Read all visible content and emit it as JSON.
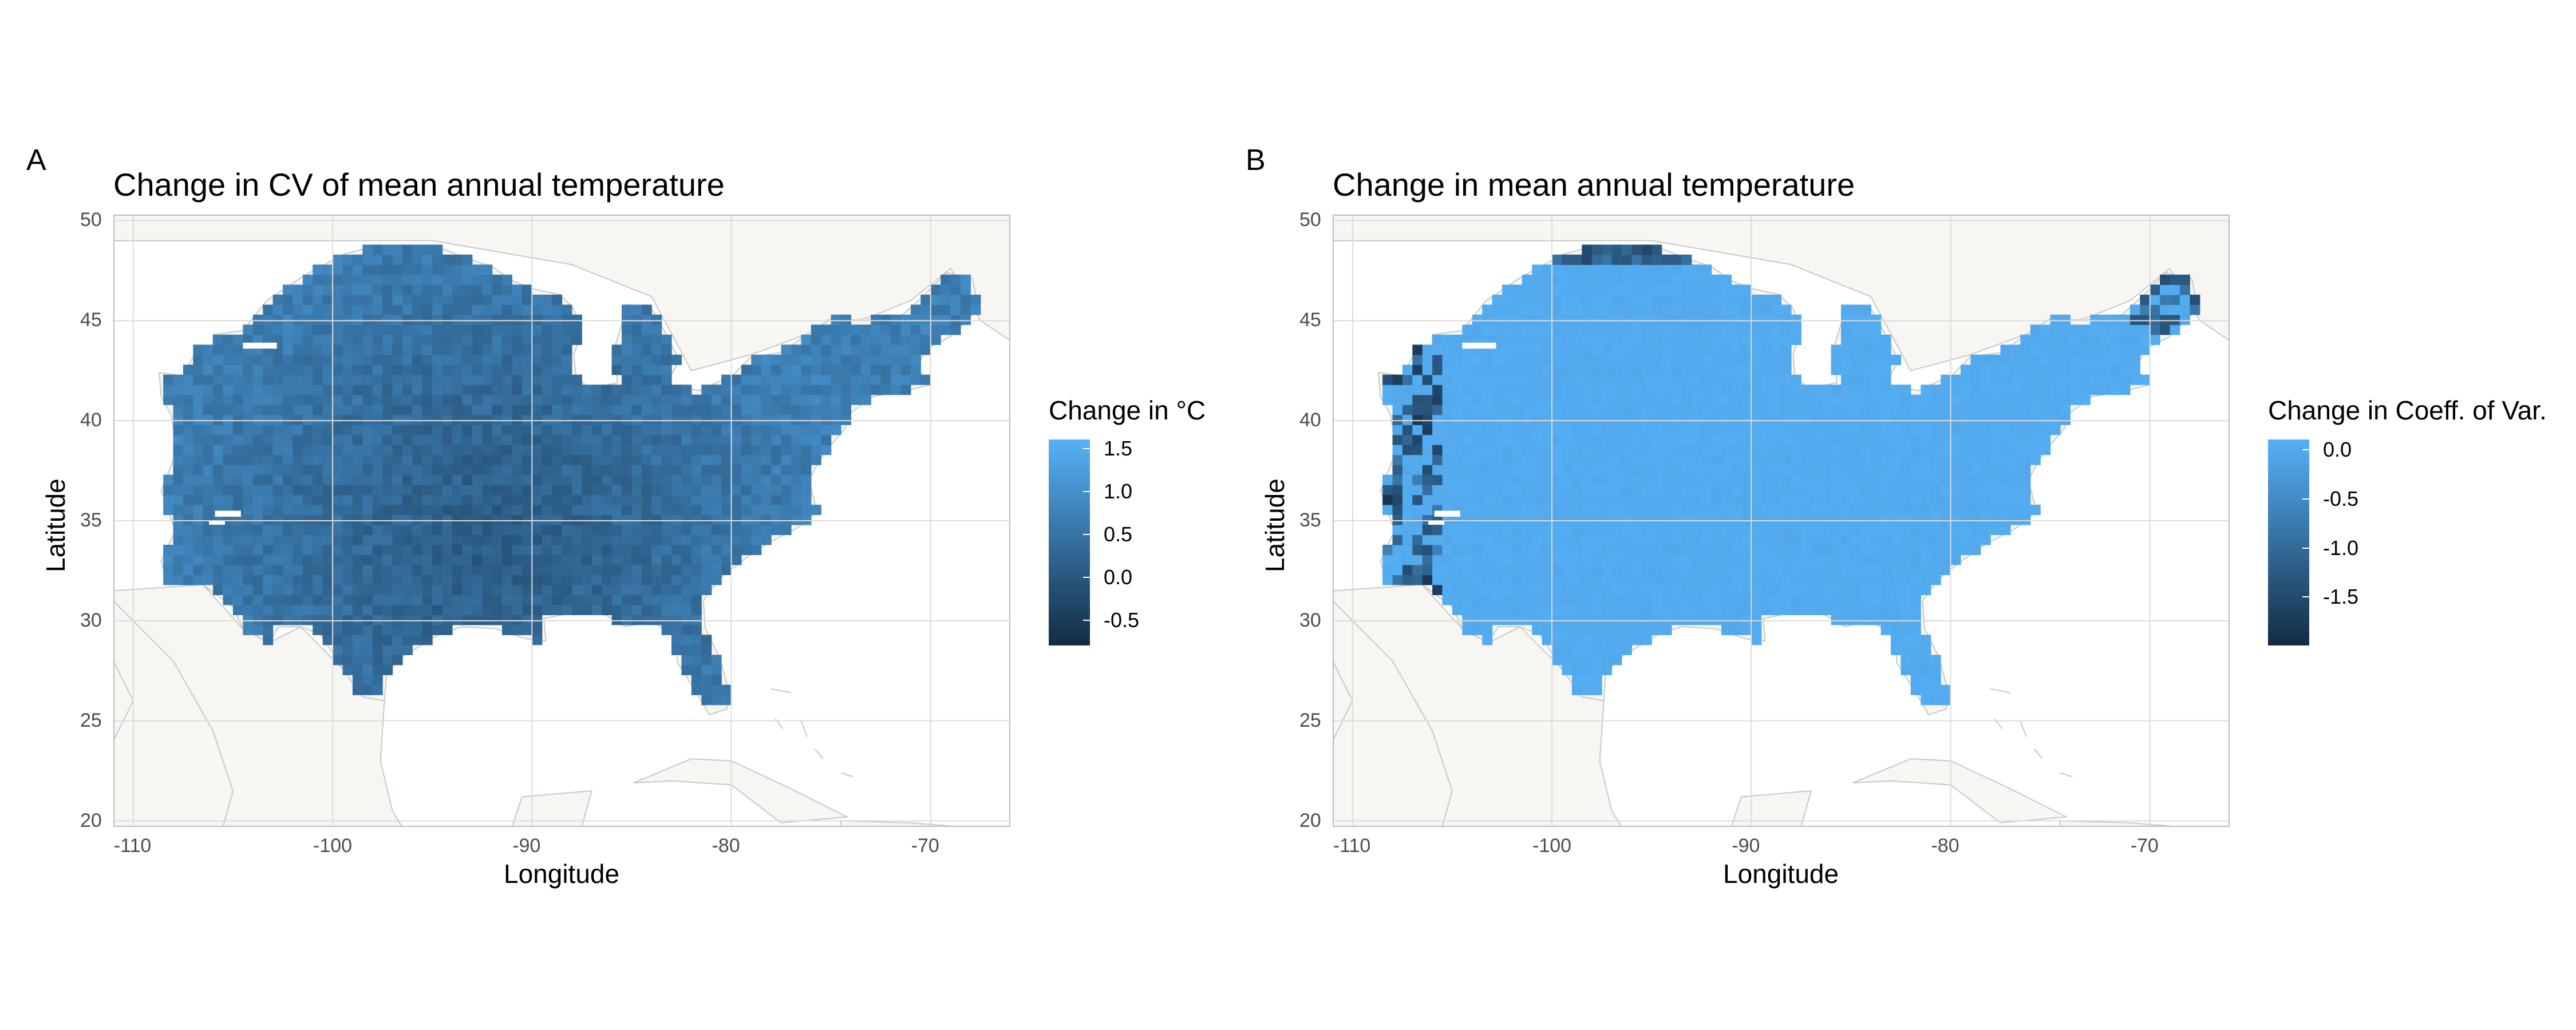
{
  "panels": [
    {
      "letter": "A",
      "title": "Change in CV of mean annual temperature",
      "xlabel": "Longitude",
      "ylabel": "Latitude",
      "x_ticks": [
        "-110",
        "-100",
        "-90",
        "-80",
        "-70"
      ],
      "y_ticks": [
        "20",
        "25",
        "30",
        "35",
        "40",
        "45",
        "50"
      ],
      "legend": {
        "title": "Change in °C",
        "labels": [
          "1.5",
          "1.0",
          "0.5",
          "0.0",
          "-0.5"
        ],
        "color_high": "#56B1F7",
        "color_low": "#132B43"
      },
      "fill_mean_color": "#2e6aa3"
    },
    {
      "letter": "B",
      "title": "Change in mean annual temperature",
      "xlabel": "Longitude",
      "ylabel": "Latitude",
      "x_ticks": [
        "-110",
        "-100",
        "-90",
        "-80",
        "-70"
      ],
      "y_ticks": [
        "20",
        "25",
        "30",
        "35",
        "40",
        "45",
        "50"
      ],
      "legend": {
        "title": "Change in Coeff. of Var.",
        "labels": [
          "0.0",
          "-0.5",
          "-1.0",
          "-1.5"
        ],
        "color_high": "#56B1F7",
        "color_low": "#132B43"
      },
      "fill_mean_color": "#4ea3ea"
    }
  ],
  "map_style": {
    "land_color": "#f7f6f2",
    "coast_color": "#c8c8c8",
    "grid_color": "#dcdcdc",
    "border_color": "#bdbdbd"
  },
  "chart_data": [
    {
      "type": "heatmap",
      "title": "Change in CV of mean annual temperature",
      "xlabel": "Longitude",
      "ylabel": "Latitude",
      "xlim": [
        -111,
        -66
      ],
      "ylim": [
        19.7,
        50.3
      ],
      "legend_title": "Change in °C",
      "color_range": [
        -0.8,
        1.6
      ],
      "typical_value": 0.4
    },
    {
      "type": "heatmap",
      "title": "Change in mean annual temperature",
      "xlabel": "Longitude",
      "ylabel": "Latitude",
      "xlim": [
        -111,
        -66
      ],
      "ylim": [
        19.7,
        50.3
      ],
      "legend_title": "Change in Coeff. of Var.",
      "color_range": [
        -2.0,
        0.1
      ],
      "typical_value": 0.0
    }
  ]
}
